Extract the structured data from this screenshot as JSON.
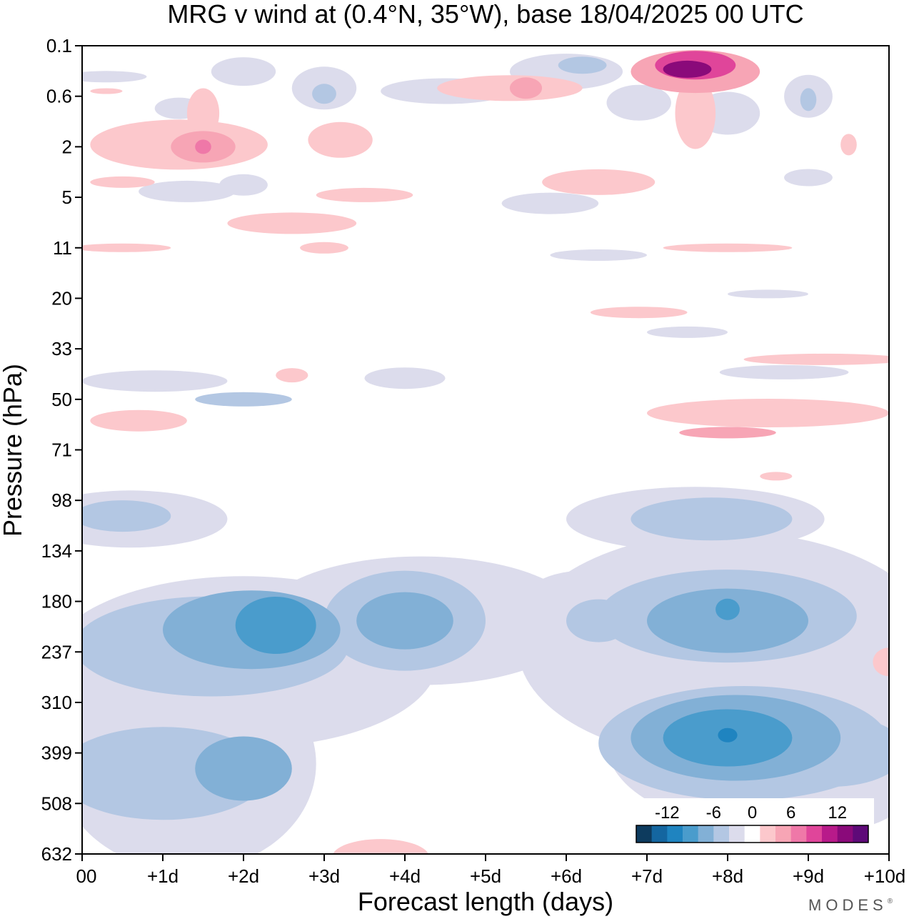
{
  "chart_data": {
    "type": "heatmap",
    "title": "MRG v wind at (0.4°N, 35°W),  base 18/04/2025  00 UTC",
    "xlabel": "Forecast length (days)",
    "ylabel": "Pressure (hPa)",
    "xlim": [
      0,
      10
    ],
    "x_ticks": [
      0,
      1,
      2,
      3,
      4,
      5,
      6,
      7,
      8,
      9,
      10
    ],
    "x_tick_labels": [
      "00",
      "+1d",
      "+2d",
      "+3d",
      "+4d",
      "+5d",
      "+6d",
      "+7d",
      "+8d",
      "+9d",
      "+10d"
    ],
    "y_tick_labels": [
      "0.1",
      "0.6",
      "2",
      "5",
      "11",
      "20",
      "33",
      "50",
      "71",
      "98",
      "134",
      "180",
      "237",
      "310",
      "399",
      "508",
      "632"
    ],
    "y_scale": "log-pressure, pressure increasing downward",
    "colorbar": {
      "labels": [
        "-12",
        "-6",
        "0",
        "6",
        "12"
      ],
      "label_values": [
        -12,
        -6,
        0,
        6,
        12
      ],
      "levels": [
        -14,
        -12,
        -10,
        -8,
        -6,
        -4,
        -2,
        2,
        4,
        6,
        8,
        10,
        12,
        14
      ],
      "colors": [
        "#0d3b5e",
        "#1466a0",
        "#1f84c0",
        "#4a9ccc",
        "#82b0d6",
        "#b3c7e3",
        "#dcdcec",
        "#ffffff",
        "#fcc8cc",
        "#f7a5b5",
        "#ef78a8",
        "#e0459a",
        "#b81a8a",
        "#8a0a7a",
        "#5e0a78"
      ],
      "placement": "bottom-right inside plot"
    },
    "features": [
      {
        "description": "negative (southward) upper-troposphere maximum",
        "day": 2.4,
        "pressure_hPa": 200,
        "value": -8
      },
      {
        "description": "negative maximum",
        "day": 4.0,
        "pressure_hPa": 200,
        "value": -6
      },
      {
        "description": "negative maximum",
        "day": 8.0,
        "pressure_hPa": 190,
        "value": -9
      },
      {
        "description": "strongest negative maximum",
        "day": 8.0,
        "pressure_hPa": 370,
        "value": -10
      },
      {
        "description": "negative maximum",
        "day": 2.0,
        "pressure_hPa": 430,
        "value": -6
      },
      {
        "description": "strongest positive maximum near model top",
        "day": 7.5,
        "pressure_hPa": 0.3,
        "value": 13
      },
      {
        "description": "positive maximum",
        "day": 1.5,
        "pressure_hPa": 2,
        "value": 8
      },
      {
        "description": "positive maximum",
        "day": 5.5,
        "pressure_hPa": 0.45,
        "value": 6
      },
      {
        "description": "positive region",
        "day": 8.0,
        "pressure_hPa": 60,
        "value": 4
      }
    ]
  },
  "branding": {
    "logo_text": "MODES",
    "mark": "®"
  },
  "colors": {
    "background": "#ffffff",
    "axis": "#000000"
  }
}
